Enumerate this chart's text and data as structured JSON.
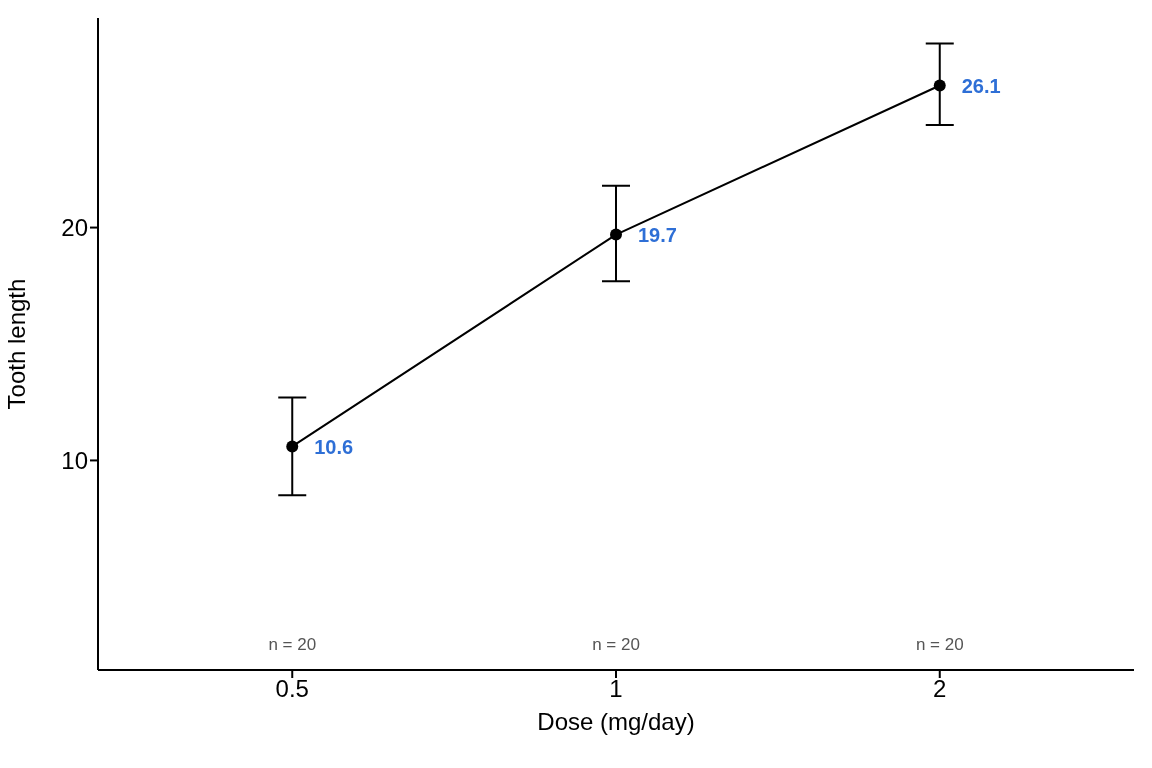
{
  "chart_data": {
    "type": "line",
    "xlabel": "Dose (mg/day)",
    "ylabel": "Tooth length",
    "categories": [
      "0.5",
      "1",
      "2"
    ],
    "values": [
      10.6,
      19.7,
      26.1
    ],
    "color": "#000000",
    "errors": [
      [
        8.5,
        12.7
      ],
      [
        17.7,
        21.8
      ],
      [
        24.4,
        27.9
      ]
    ],
    "data_labels": true,
    "ylim": [
      1,
      29
    ],
    "yticks": [
      10,
      20
    ],
    "grid": false,
    "legend": false,
    "marker": "circle",
    "line_style": "solid",
    "annotations": [
      "n = 20",
      "n = 20",
      "n = 20"
    ]
  }
}
